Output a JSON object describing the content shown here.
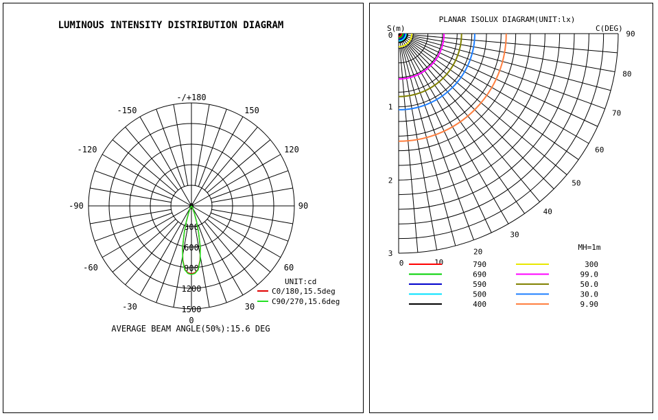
{
  "chart_data": [
    {
      "type": "polar",
      "title": "LUMINOUS INTENSITY DISTRIBUTION DIAGRAM",
      "unit_label": "UNIT:cd",
      "angle_labels": [
        {
          "angle": 180,
          "text": "-/+180"
        },
        {
          "angle": -150,
          "text": "-150"
        },
        {
          "angle": 150,
          "text": "150"
        },
        {
          "angle": -120,
          "text": "-120"
        },
        {
          "angle": 120,
          "text": "120"
        },
        {
          "angle": -90,
          "text": "-90"
        },
        {
          "angle": 90,
          "text": "90"
        },
        {
          "angle": -60,
          "text": "-60"
        },
        {
          "angle": 60,
          "text": "60"
        },
        {
          "angle": -30,
          "text": "-30"
        },
        {
          "angle": 30,
          "text": "30"
        },
        {
          "angle": 0,
          "text": "0"
        }
      ],
      "radial_ticks": [
        "0",
        "300",
        "600",
        "900",
        "1200",
        "1500"
      ],
      "radial_max": 1500,
      "series": [
        {
          "name": "C0/180,15.5deg",
          "color": "#e00000",
          "points": [
            [
              0,
              990
            ],
            [
              3,
              975
            ],
            [
              6,
              930
            ],
            [
              9,
              800
            ],
            [
              12,
              620
            ],
            [
              15,
              400
            ],
            [
              18,
              240
            ],
            [
              22,
              110
            ],
            [
              27,
              40
            ],
            [
              34,
              8
            ],
            [
              45,
              0
            ]
          ]
        },
        {
          "name": "C90/270,15.6deg",
          "color": "#22e022",
          "points": [
            [
              0,
              1000
            ],
            [
              3,
              985
            ],
            [
              6,
              935
            ],
            [
              9,
              810
            ],
            [
              12,
              625
            ],
            [
              15,
              405
            ],
            [
              18,
              245
            ],
            [
              22,
              115
            ],
            [
              27,
              42
            ],
            [
              34,
              9
            ],
            [
              45,
              0
            ]
          ]
        }
      ],
      "footer": "AVERAGE BEAM ANGLE(50%):15.6 DEG"
    },
    {
      "type": "isolux",
      "title": "PLANAR ISOLUX DIAGRAM(UNIT:lx)",
      "s_label": "S(m)",
      "c_label": "C(DEG)",
      "mh_label": "MH=1m",
      "distance_ticks": [
        "0",
        "1",
        "2",
        "3"
      ],
      "distance_max": 3,
      "c_angle_ticks": [
        "90",
        "80",
        "70",
        "60",
        "50",
        "40",
        "30",
        "20",
        "10",
        "0"
      ],
      "levels": [
        {
          "value": "790",
          "color": "#ff0000",
          "radius": 0.04
        },
        {
          "value": "690",
          "color": "#00d000",
          "radius": 0.06
        },
        {
          "value": "590",
          "color": "#0000cc",
          "radius": 0.08
        },
        {
          "value": "500",
          "color": "#00e0ff",
          "radius": 0.1
        },
        {
          "value": "400",
          "color": "#000000",
          "radius": 0.12
        },
        {
          "value": "300",
          "color": "#e8e800",
          "radius": 0.18
        },
        {
          "value": "99.0",
          "color": "#ff00ff",
          "radius": 0.62
        },
        {
          "value": "50.0",
          "color": "#808000",
          "radius": 0.86
        },
        {
          "value": "30.0",
          "color": "#1e7fff",
          "radius": 1.04
        },
        {
          "value": "9.90",
          "color": "#ff7f3f",
          "radius": 1.47
        }
      ]
    }
  ]
}
